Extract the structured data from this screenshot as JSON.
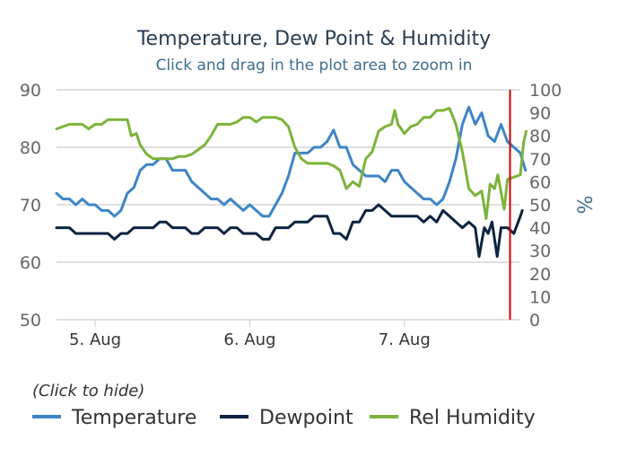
{
  "chart_data": {
    "type": "line",
    "title": "Temperature, Dew Point & Humidity",
    "subtitle": "Click and drag in the plot area to zoom in",
    "x_ticks": [
      "5. Aug",
      "6. Aug",
      "7. Aug"
    ],
    "x_tick_hours": [
      6,
      30,
      54
    ],
    "x_range_hours": [
      0,
      72
    ],
    "y_left": {
      "range": [
        50,
        90
      ],
      "ticks": [
        50,
        60,
        70,
        80,
        90
      ]
    },
    "y_right": {
      "label": "%",
      "range": [
        0,
        100
      ],
      "ticks": [
        0,
        10,
        20,
        30,
        40,
        50,
        60,
        70,
        80,
        90,
        100
      ]
    },
    "grid": true,
    "marker_line_hour": 70.4,
    "marker_color": "#cc0000",
    "legend": {
      "title": "(Click to hide)",
      "placement": "bottom",
      "items": [
        {
          "name": "Temperature",
          "color": "#3d85c6"
        },
        {
          "name": "Dewpoint",
          "color": "#0c2340"
        },
        {
          "name": "Rel Humidity",
          "color": "#7cb33a"
        }
      ]
    },
    "series": [
      {
        "name": "Temperature",
        "axis": "left",
        "color": "#3d85c6",
        "points": [
          [
            0,
            72
          ],
          [
            1,
            71
          ],
          [
            2,
            71
          ],
          [
            3,
            70
          ],
          [
            4,
            71
          ],
          [
            5,
            70
          ],
          [
            6,
            70
          ],
          [
            7,
            69
          ],
          [
            8,
            69
          ],
          [
            9,
            68
          ],
          [
            10,
            69
          ],
          [
            11,
            72
          ],
          [
            12,
            73
          ],
          [
            13,
            76
          ],
          [
            14,
            77
          ],
          [
            15,
            77
          ],
          [
            16,
            78
          ],
          [
            17,
            78
          ],
          [
            18,
            76
          ],
          [
            19,
            76
          ],
          [
            20,
            76
          ],
          [
            21,
            74
          ],
          [
            22,
            73
          ],
          [
            23,
            72
          ],
          [
            24,
            71
          ],
          [
            25,
            71
          ],
          [
            26,
            70
          ],
          [
            27,
            71
          ],
          [
            28,
            70
          ],
          [
            29,
            69
          ],
          [
            30,
            70
          ],
          [
            31,
            69
          ],
          [
            32,
            68
          ],
          [
            33,
            68
          ],
          [
            34,
            70
          ],
          [
            35,
            72
          ],
          [
            36,
            75
          ],
          [
            37,
            79
          ],
          [
            38,
            79
          ],
          [
            39,
            79
          ],
          [
            40,
            80
          ],
          [
            41,
            80
          ],
          [
            42,
            81
          ],
          [
            43,
            83
          ],
          [
            44,
            80
          ],
          [
            45,
            80
          ],
          [
            46,
            77
          ],
          [
            47,
            76
          ],
          [
            48,
            75
          ],
          [
            49,
            75
          ],
          [
            50,
            75
          ],
          [
            51,
            74
          ],
          [
            52,
            76
          ],
          [
            53,
            76
          ],
          [
            54,
            74
          ],
          [
            55,
            73
          ],
          [
            56,
            72
          ],
          [
            57,
            71
          ],
          [
            58,
            71
          ],
          [
            59,
            70
          ],
          [
            60,
            71
          ],
          [
            61,
            74
          ],
          [
            62,
            78
          ],
          [
            63,
            84
          ],
          [
            64,
            87
          ],
          [
            65,
            84
          ],
          [
            66,
            86
          ],
          [
            67,
            82
          ],
          [
            68,
            81
          ],
          [
            69,
            84
          ],
          [
            70,
            81
          ],
          [
            71,
            80
          ],
          [
            72,
            79
          ],
          [
            72.8,
            76
          ]
        ]
      },
      {
        "name": "Dewpoint",
        "axis": "left",
        "color": "#0c2340",
        "points": [
          [
            0,
            66
          ],
          [
            1,
            66
          ],
          [
            2,
            66
          ],
          [
            3,
            65
          ],
          [
            4,
            65
          ],
          [
            5,
            65
          ],
          [
            6,
            65
          ],
          [
            7,
            65
          ],
          [
            8,
            65
          ],
          [
            9,
            64
          ],
          [
            10,
            65
          ],
          [
            11,
            65
          ],
          [
            12,
            66
          ],
          [
            13,
            66
          ],
          [
            14,
            66
          ],
          [
            15,
            66
          ],
          [
            16,
            67
          ],
          [
            17,
            67
          ],
          [
            18,
            66
          ],
          [
            19,
            66
          ],
          [
            20,
            66
          ],
          [
            21,
            65
          ],
          [
            22,
            65
          ],
          [
            23,
            66
          ],
          [
            24,
            66
          ],
          [
            25,
            66
          ],
          [
            26,
            65
          ],
          [
            27,
            66
          ],
          [
            28,
            66
          ],
          [
            29,
            65
          ],
          [
            30,
            65
          ],
          [
            31,
            65
          ],
          [
            32,
            64
          ],
          [
            33,
            64
          ],
          [
            34,
            66
          ],
          [
            35,
            66
          ],
          [
            36,
            66
          ],
          [
            37,
            67
          ],
          [
            38,
            67
          ],
          [
            39,
            67
          ],
          [
            40,
            68
          ],
          [
            41,
            68
          ],
          [
            42,
            68
          ],
          [
            43,
            65
          ],
          [
            44,
            65
          ],
          [
            45,
            64
          ],
          [
            46,
            67
          ],
          [
            47,
            67
          ],
          [
            48,
            69
          ],
          [
            49,
            69
          ],
          [
            50,
            70
          ],
          [
            51,
            69
          ],
          [
            52,
            68
          ],
          [
            53,
            68
          ],
          [
            54,
            68
          ],
          [
            55,
            68
          ],
          [
            56,
            68
          ],
          [
            57,
            67
          ],
          [
            58,
            68
          ],
          [
            59,
            67
          ],
          [
            60,
            69
          ],
          [
            61,
            68
          ],
          [
            62,
            67
          ],
          [
            63,
            66
          ],
          [
            64,
            67
          ],
          [
            65,
            66
          ],
          [
            65.6,
            61
          ],
          [
            66.4,
            66
          ],
          [
            67,
            65
          ],
          [
            67.6,
            67
          ],
          [
            68.4,
            61
          ],
          [
            69,
            66
          ],
          [
            70,
            66
          ],
          [
            71,
            65
          ],
          [
            72,
            68
          ],
          [
            72.3,
            69
          ]
        ]
      },
      {
        "name": "Rel Humidity",
        "axis": "right",
        "color": "#7cb33a",
        "points": [
          [
            0,
            83
          ],
          [
            1,
            84
          ],
          [
            2,
            85
          ],
          [
            3,
            85
          ],
          [
            4,
            85
          ],
          [
            5,
            83
          ],
          [
            6,
            85
          ],
          [
            7,
            85
          ],
          [
            8,
            87
          ],
          [
            9,
            87
          ],
          [
            10,
            87
          ],
          [
            11,
            87
          ],
          [
            11.6,
            80
          ],
          [
            12.4,
            81
          ],
          [
            13,
            76
          ],
          [
            14,
            72
          ],
          [
            15,
            70
          ],
          [
            16,
            70
          ],
          [
            17,
            70
          ],
          [
            18,
            70
          ],
          [
            19,
            71
          ],
          [
            20,
            71
          ],
          [
            21,
            72
          ],
          [
            22,
            74
          ],
          [
            23,
            76
          ],
          [
            24,
            80
          ],
          [
            25,
            85
          ],
          [
            26,
            85
          ],
          [
            27,
            85
          ],
          [
            28,
            86
          ],
          [
            29,
            88
          ],
          [
            30,
            88
          ],
          [
            31,
            86
          ],
          [
            32,
            88
          ],
          [
            33,
            88
          ],
          [
            34,
            88
          ],
          [
            35,
            87
          ],
          [
            36,
            84
          ],
          [
            37,
            75
          ],
          [
            38,
            70
          ],
          [
            39,
            68
          ],
          [
            40,
            68
          ],
          [
            41,
            68
          ],
          [
            42,
            68
          ],
          [
            43,
            67
          ],
          [
            44,
            65
          ],
          [
            45,
            57
          ],
          [
            46,
            60
          ],
          [
            47,
            58
          ],
          [
            48,
            70
          ],
          [
            49,
            73
          ],
          [
            50,
            82
          ],
          [
            51,
            84
          ],
          [
            52,
            85
          ],
          [
            52.5,
            91
          ],
          [
            53,
            85
          ],
          [
            54,
            81
          ],
          [
            55,
            84
          ],
          [
            56,
            85
          ],
          [
            57,
            88
          ],
          [
            58,
            88
          ],
          [
            59,
            91
          ],
          [
            60,
            91
          ],
          [
            61,
            92
          ],
          [
            62,
            85
          ],
          [
            63,
            73
          ],
          [
            64,
            57
          ],
          [
            65,
            54
          ],
          [
            66,
            56
          ],
          [
            66.7,
            44
          ],
          [
            67.3,
            59
          ],
          [
            68,
            57
          ],
          [
            68.5,
            63
          ],
          [
            69.5,
            48
          ],
          [
            70,
            61
          ],
          [
            71,
            62
          ],
          [
            72,
            63
          ],
          [
            72.5,
            77
          ],
          [
            72.9,
            82
          ]
        ]
      }
    ]
  }
}
